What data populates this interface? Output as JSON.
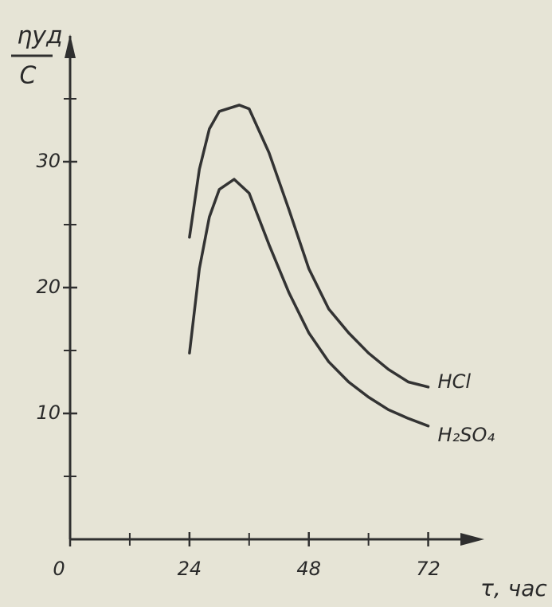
{
  "chart_data": {
    "type": "line",
    "ylabel": {
      "numerator": "ηуд",
      "denominator": "C"
    },
    "xlabel": "τ, час",
    "xlim": [
      0,
      82
    ],
    "xticks": [
      0,
      24,
      48,
      72
    ],
    "xminorticks": [
      12,
      36,
      60
    ],
    "ylim": [
      0,
      40
    ],
    "yticks": [
      10,
      20,
      30
    ],
    "yminorticks": [
      5,
      15,
      25,
      35
    ],
    "axis_color": "#2f2f2f",
    "series": [
      {
        "name": "HCl",
        "color": "#333333",
        "x": [
          24,
          26,
          28,
          30,
          34,
          36,
          40,
          44,
          48,
          52,
          56,
          60,
          64,
          68,
          72
        ],
        "values": [
          24,
          29.4,
          32.6,
          34,
          34.5,
          34.2,
          30.7,
          26.2,
          21.5,
          18.3,
          16.4,
          14.8,
          13.5,
          12.5,
          12.1
        ]
      },
      {
        "name": "H₂SO₄",
        "color": "#333333",
        "x": [
          24,
          26,
          28,
          30,
          33,
          36,
          40,
          44,
          48,
          52,
          56,
          60,
          64,
          68,
          72
        ],
        "values": [
          14.8,
          21.5,
          25.6,
          27.8,
          28.6,
          27.5,
          23.4,
          19.6,
          16.4,
          14.1,
          12.5,
          11.3,
          10.3,
          9.6,
          9.0
        ]
      }
    ]
  }
}
